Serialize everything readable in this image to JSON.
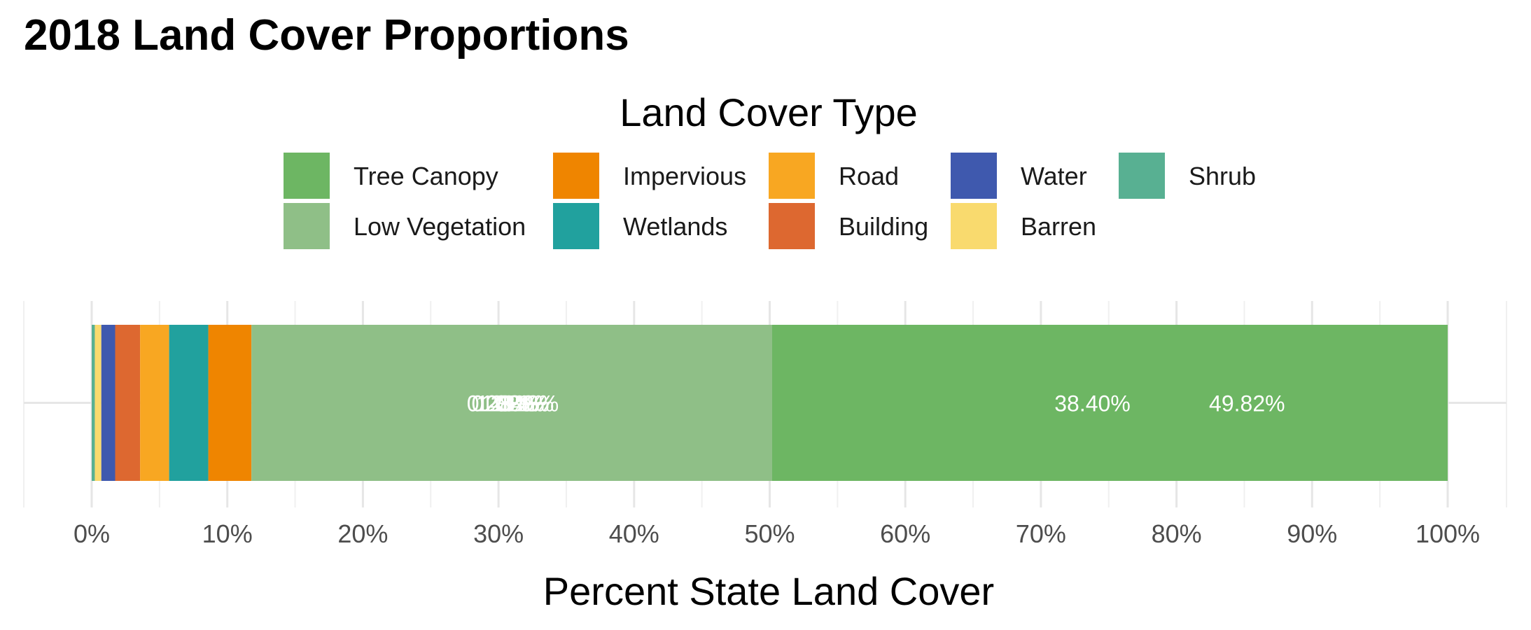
{
  "chart_data": {
    "type": "bar",
    "orientation": "horizontal",
    "stacked": true,
    "title": "2018 Land Cover Proportions",
    "xlabel": "Percent State Land Cover",
    "ylabel": "",
    "xlim": [
      0,
      100
    ],
    "x_ticks": [
      "0%",
      "10%",
      "20%",
      "30%",
      "40%",
      "50%",
      "60%",
      "70%",
      "80%",
      "90%",
      "100%"
    ],
    "grid": true,
    "legend": {
      "title": "Land Cover Type",
      "placement": "top",
      "entries": [
        {
          "name": "Tree Canopy",
          "color": "#6db663"
        },
        {
          "name": "Low Vegetation",
          "color": "#8fbf87"
        },
        {
          "name": "Impervious",
          "color": "#ef8500"
        },
        {
          "name": "Wetlands",
          "color": "#21a19e"
        },
        {
          "name": "Road",
          "color": "#f8a722"
        },
        {
          "name": "Building",
          "color": "#dd6830"
        },
        {
          "name": "Water",
          "color": "#3f59ae"
        },
        {
          "name": "Barren",
          "color": "#f9da6e"
        },
        {
          "name": "Shrub",
          "color": "#58b092"
        }
      ]
    },
    "series": [
      {
        "name": "Tree Canopy",
        "value": 49.82,
        "label": "49.82%",
        "color": "#6db663"
      },
      {
        "name": "Low Vegetation",
        "value": 38.4,
        "label": "38.40%",
        "color": "#8fbf87"
      },
      {
        "name": "Impervious",
        "value": 3.18,
        "label": "3.18%",
        "color": "#ef8500"
      },
      {
        "name": "Wetlands",
        "value": 2.89,
        "label": "2.89%",
        "color": "#21a19e"
      },
      {
        "name": "Road",
        "value": 2.14,
        "label": "2.14%",
        "color": "#f8a722"
      },
      {
        "name": "Building",
        "value": 1.84,
        "label": "1.84%",
        "color": "#dd6830"
      },
      {
        "name": "Water",
        "value": 1.02,
        "label": "1.02%",
        "color": "#3f59ae"
      },
      {
        "name": "Barren",
        "value": 0.48,
        "label": "0.48%",
        "color": "#f9da6e"
      },
      {
        "name": "Shrub",
        "value": 0.23,
        "label": "0.23%",
        "color": "#58b092"
      }
    ],
    "bar_stack_order_from_left": [
      "Shrub",
      "Barren",
      "Water",
      "Building",
      "Road",
      "Wetlands",
      "Impervious",
      "Low Vegetation",
      "Tree Canopy"
    ]
  }
}
